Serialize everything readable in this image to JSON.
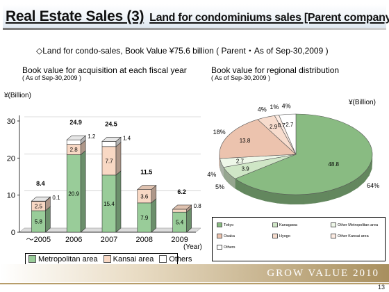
{
  "header": {
    "title": "Real Estate Sales (3)",
    "subtitle": "Land for condominiums sales [Parent company]"
  },
  "summary_text": "◇Land for condo-sales, Book Value ¥75.6 billion ( Parent・As of Sep-30,2009 )",
  "footer": {
    "brand": "GROW VALUE 2010",
    "page_number": "13"
  },
  "chart_data": [
    {
      "type": "bar",
      "stacked": true,
      "title": "Book value for acquisition at each fiscal year",
      "subtitle": "( As of Sep-30,2009 )",
      "ylabel": "¥(Billion)",
      "xlabel": "(Year)",
      "ylim": [
        0,
        30
      ],
      "yticks": [
        "0",
        "10",
        "20",
        "30"
      ],
      "categories": [
        "～2005",
        "2006",
        "2007",
        "2008",
        "2009"
      ],
      "series": [
        {
          "name": "Metropolitan area",
          "color": "#99cc99",
          "values": [
            5.8,
            20.9,
            15.4,
            7.9,
            5.4
          ],
          "labels": [
            "5.8",
            "20.9",
            "15.4",
            "7.9",
            "5.4"
          ]
        },
        {
          "name": "Kansai area",
          "color": "#f8d8c4",
          "values": [
            2.5,
            2.8,
            7.7,
            3.6,
            0.8
          ],
          "labels": [
            "2.5",
            "2.8",
            "7.7",
            "3.6",
            "0.8"
          ]
        },
        {
          "name": "Others",
          "color": "#ffffff",
          "values": [
            0.1,
            1.2,
            1.4,
            0,
            0
          ],
          "labels": [
            "0.1",
            "1.2",
            "1.4",
            "",
            ""
          ]
        }
      ],
      "totals": [
        "8.4",
        "24.9",
        "24.5",
        "11.5",
        "6.2"
      ],
      "legend": "bottom"
    },
    {
      "type": "pie",
      "three_d": true,
      "title": "Book value for regional distribution",
      "subtitle": "( As of Sep-30,2009 )",
      "unit": "¥(Billion)",
      "slices": [
        {
          "name": "Tokyo",
          "value": 48.8,
          "label": "48.8",
          "percent": "64%",
          "color": "#89bb82"
        },
        {
          "name": "Kanagawa",
          "value": 3.9,
          "label": "3.9",
          "percent": "5%",
          "color": "#cfe6c6"
        },
        {
          "name": "Other Metropolitan area",
          "value": 2.7,
          "label": "2.7",
          "percent": "4%",
          "color": "#eef7e8"
        },
        {
          "name": "Osaka",
          "value": 13.8,
          "label": "13.8",
          "percent": "18%",
          "color": "#ecc3ae"
        },
        {
          "name": "Hyogo",
          "value": 2.9,
          "label": "2.9",
          "percent": "4%",
          "color": "#f7dccd"
        },
        {
          "name": "Other Kansai area",
          "value": 0.7,
          "label": "0.7",
          "percent": "1%",
          "color": "#fcebe2"
        },
        {
          "name": "Others",
          "value": 2.7,
          "label": "2.7",
          "percent": "4%",
          "color": "#ffffff"
        }
      ],
      "legend": "bottom"
    }
  ]
}
